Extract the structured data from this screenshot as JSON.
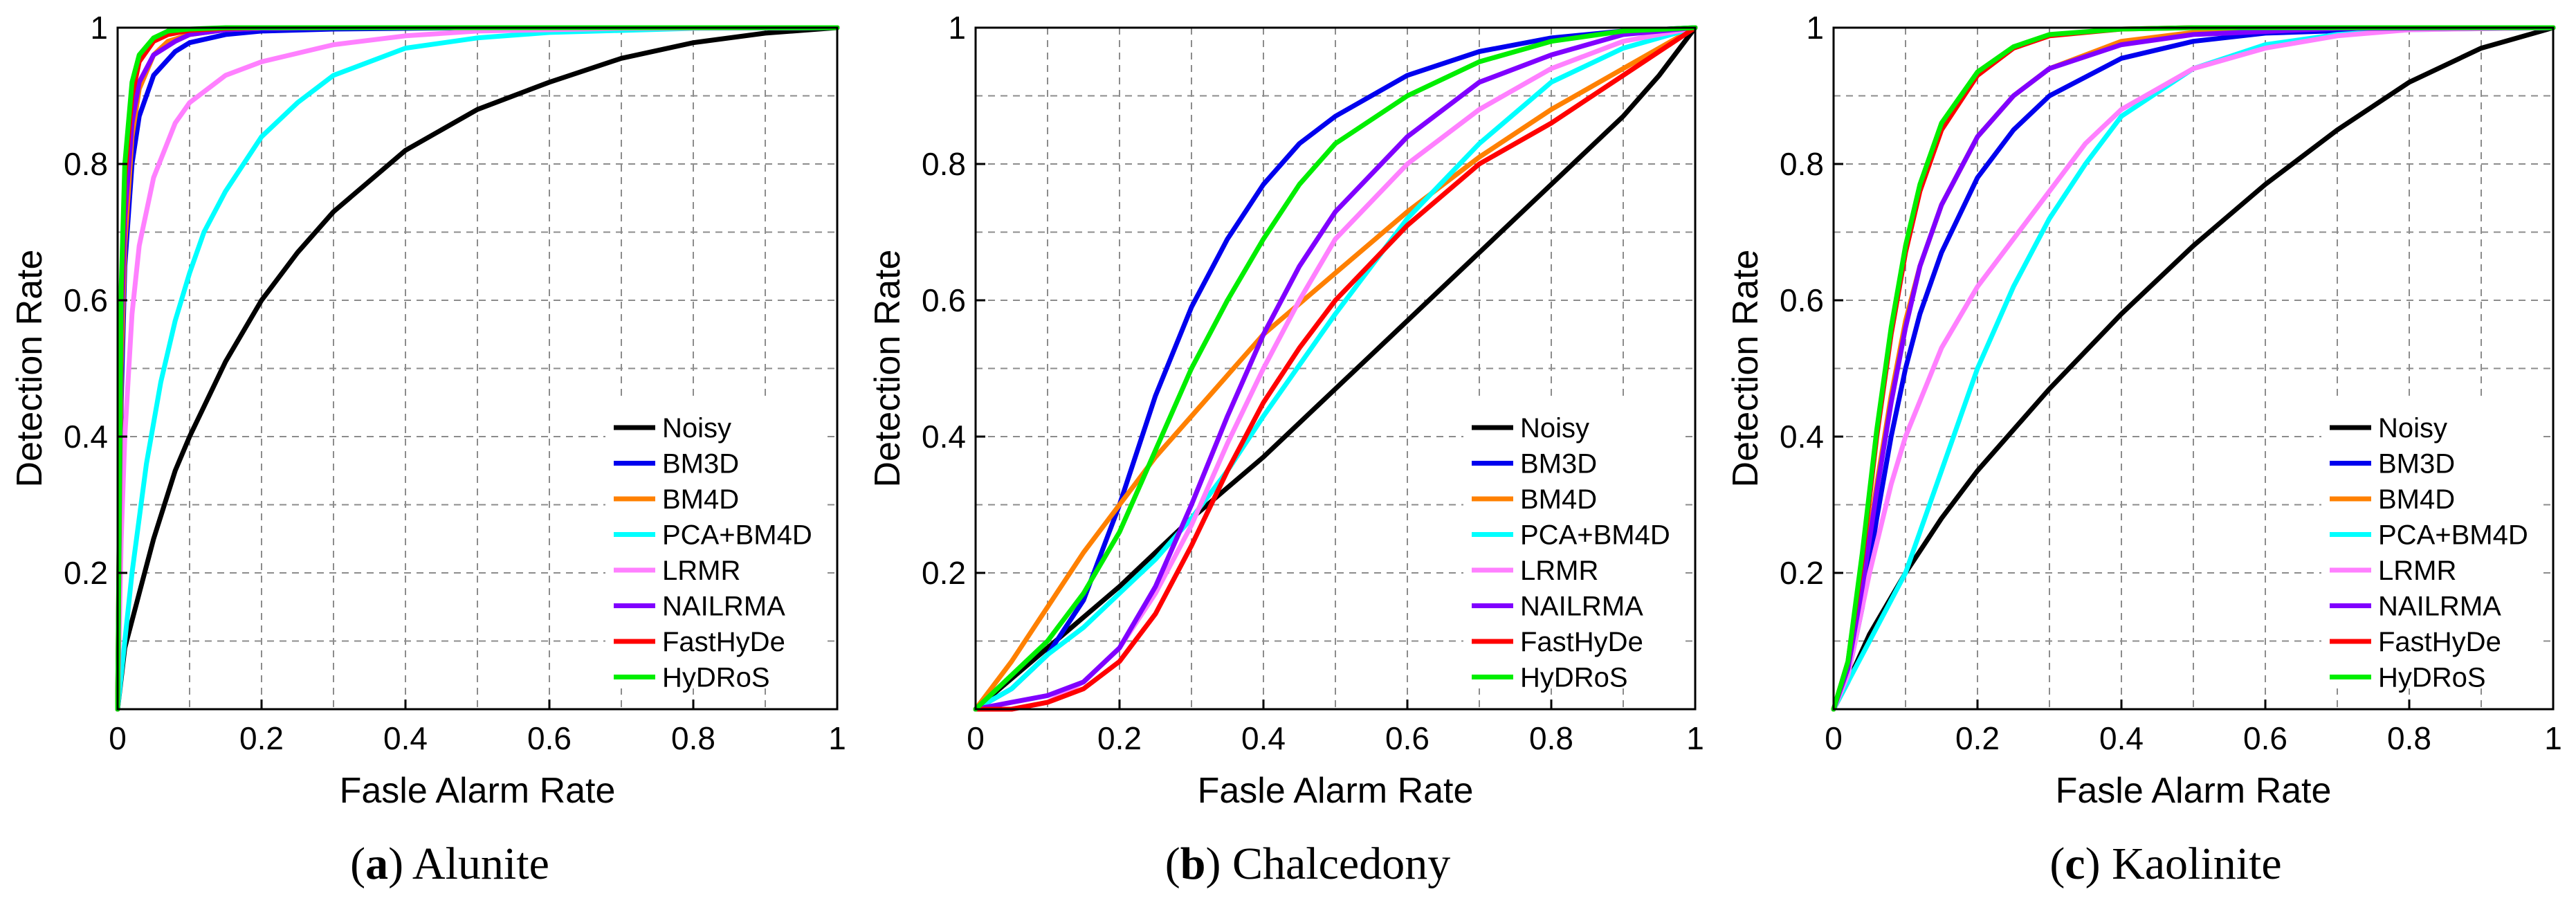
{
  "figure": {
    "panels": [
      {
        "caption_letter": "a",
        "caption_name": "Alunite"
      },
      {
        "caption_letter": "b",
        "caption_name": "Chalcedony"
      },
      {
        "caption_letter": "c",
        "caption_name": "Kaolinite"
      }
    ]
  },
  "chart_data": [
    {
      "type": "line",
      "title": "",
      "xlabel": "Fasle Alarm Rate",
      "ylabel": "Detection Rate",
      "xlim": [
        0,
        1
      ],
      "ylim": [
        0,
        1
      ],
      "xticks": [
        0,
        0.2,
        0.4,
        0.6,
        0.8,
        1
      ],
      "xtick_labels": [
        "0",
        "0.2",
        "0.4",
        "0.6",
        "0.8",
        "1"
      ],
      "yticks": [
        0.2,
        0.4,
        0.6,
        0.8,
        1
      ],
      "ytick_labels": [
        "0.2",
        "0.4",
        "0.6",
        "0.8",
        "1"
      ],
      "grid": true,
      "legend_position": "bottom-right",
      "series": [
        {
          "name": "Noisy",
          "color": "#000000",
          "x": [
            0,
            0.01,
            0.02,
            0.03,
            0.05,
            0.08,
            0.1,
            0.15,
            0.2,
            0.25,
            0.3,
            0.4,
            0.5,
            0.6,
            0.7,
            0.8,
            0.9,
            1.0
          ],
          "y": [
            0,
            0.09,
            0.13,
            0.17,
            0.25,
            0.35,
            0.4,
            0.51,
            0.6,
            0.67,
            0.73,
            0.82,
            0.88,
            0.92,
            0.955,
            0.978,
            0.992,
            1.0
          ]
        },
        {
          "name": "BM3D",
          "color": "#0000ee",
          "x": [
            0,
            0.005,
            0.01,
            0.02,
            0.03,
            0.05,
            0.08,
            0.1,
            0.15,
            0.2,
            0.3,
            0.5,
            1.0
          ],
          "y": [
            0,
            0.45,
            0.65,
            0.8,
            0.87,
            0.93,
            0.965,
            0.978,
            0.99,
            0.995,
            0.998,
            1.0,
            1.0
          ]
        },
        {
          "name": "BM4D",
          "color": "#ff8000",
          "x": [
            0,
            0.005,
            0.01,
            0.02,
            0.03,
            0.05,
            0.07,
            0.1,
            0.15,
            0.2,
            0.3,
            1.0
          ],
          "y": [
            0,
            0.5,
            0.68,
            0.84,
            0.91,
            0.96,
            0.98,
            0.99,
            0.997,
            0.999,
            1.0,
            1.0
          ]
        },
        {
          "name": "PCA+BM4D",
          "color": "#00ffff",
          "x": [
            0,
            0.01,
            0.02,
            0.04,
            0.06,
            0.08,
            0.1,
            0.12,
            0.15,
            0.2,
            0.25,
            0.3,
            0.4,
            0.5,
            0.6,
            0.8,
            1.0
          ],
          "y": [
            0,
            0.1,
            0.2,
            0.36,
            0.48,
            0.57,
            0.64,
            0.7,
            0.76,
            0.84,
            0.89,
            0.93,
            0.97,
            0.985,
            0.993,
            0.999,
            1.0
          ]
        },
        {
          "name": "LRMR",
          "color": "#ff80ff",
          "x": [
            0,
            0.005,
            0.01,
            0.02,
            0.03,
            0.05,
            0.08,
            0.1,
            0.15,
            0.2,
            0.3,
            0.4,
            0.5,
            0.7,
            1.0
          ],
          "y": [
            0,
            0.25,
            0.4,
            0.58,
            0.68,
            0.78,
            0.86,
            0.89,
            0.93,
            0.95,
            0.975,
            0.988,
            0.995,
            0.999,
            1.0
          ]
        },
        {
          "name": "NAILRMA",
          "color": "#8000ff",
          "x": [
            0,
            0.005,
            0.01,
            0.02,
            0.03,
            0.05,
            0.08,
            0.1,
            0.15,
            0.2,
            0.3,
            1.0
          ],
          "y": [
            0,
            0.55,
            0.72,
            0.86,
            0.92,
            0.96,
            0.98,
            0.99,
            0.997,
            0.999,
            1.0,
            1.0
          ]
        },
        {
          "name": "FastHyDe",
          "color": "#ff0000",
          "x": [
            0,
            0.005,
            0.01,
            0.02,
            0.03,
            0.05,
            0.07,
            0.1,
            0.15,
            0.2,
            1.0
          ],
          "y": [
            0,
            0.6,
            0.78,
            0.9,
            0.95,
            0.98,
            0.99,
            0.996,
            0.999,
            1.0,
            1.0
          ]
        },
        {
          "name": "HyDRoS",
          "color": "#00ee00",
          "x": [
            0,
            0.005,
            0.01,
            0.02,
            0.03,
            0.05,
            0.07,
            0.1,
            0.15,
            1.0
          ],
          "y": [
            0,
            0.62,
            0.8,
            0.92,
            0.96,
            0.985,
            0.995,
            0.998,
            1.0,
            1.0
          ]
        }
      ]
    },
    {
      "type": "line",
      "title": "",
      "xlabel": "Fasle Alarm Rate",
      "ylabel": "Detection Rate",
      "xlim": [
        0,
        1
      ],
      "ylim": [
        0,
        1
      ],
      "xticks": [
        0,
        0.2,
        0.4,
        0.6,
        0.8,
        1
      ],
      "xtick_labels": [
        "0",
        "0.2",
        "0.4",
        "0.6",
        "0.8",
        "1"
      ],
      "yticks": [
        0.2,
        0.4,
        0.6,
        0.8,
        1
      ],
      "ytick_labels": [
        "0.2",
        "0.4",
        "0.6",
        "0.8",
        "1"
      ],
      "grid": true,
      "legend_position": "bottom-right",
      "series": [
        {
          "name": "Noisy",
          "color": "#000000",
          "x": [
            0,
            0.1,
            0.2,
            0.3,
            0.4,
            0.5,
            0.6,
            0.7,
            0.8,
            0.9,
            0.95,
            1.0
          ],
          "y": [
            0,
            0.09,
            0.18,
            0.28,
            0.37,
            0.47,
            0.57,
            0.67,
            0.77,
            0.87,
            0.93,
            1.0
          ]
        },
        {
          "name": "BM3D",
          "color": "#0000ee",
          "x": [
            0,
            0.05,
            0.1,
            0.15,
            0.2,
            0.25,
            0.3,
            0.35,
            0.4,
            0.45,
            0.5,
            0.6,
            0.7,
            0.8,
            0.9,
            1.0
          ],
          "y": [
            0,
            0.03,
            0.08,
            0.16,
            0.3,
            0.46,
            0.59,
            0.69,
            0.77,
            0.83,
            0.87,
            0.93,
            0.965,
            0.985,
            0.995,
            1.0
          ]
        },
        {
          "name": "BM4D",
          "color": "#ff8000",
          "x": [
            0,
            0.05,
            0.1,
            0.15,
            0.2,
            0.25,
            0.3,
            0.35,
            0.4,
            0.5,
            0.6,
            0.7,
            0.8,
            0.9,
            1.0
          ],
          "y": [
            0,
            0.07,
            0.15,
            0.23,
            0.3,
            0.37,
            0.43,
            0.49,
            0.55,
            0.64,
            0.73,
            0.81,
            0.88,
            0.94,
            1.0
          ]
        },
        {
          "name": "PCA+BM4D",
          "color": "#00ffff",
          "x": [
            0,
            0.05,
            0.1,
            0.15,
            0.2,
            0.25,
            0.3,
            0.35,
            0.4,
            0.5,
            0.6,
            0.7,
            0.8,
            0.9,
            1.0
          ],
          "y": [
            0,
            0.03,
            0.08,
            0.12,
            0.17,
            0.22,
            0.28,
            0.35,
            0.43,
            0.58,
            0.72,
            0.83,
            0.92,
            0.97,
            1.0
          ]
        },
        {
          "name": "LRMR",
          "color": "#ff80ff",
          "x": [
            0,
            0.05,
            0.1,
            0.15,
            0.2,
            0.25,
            0.3,
            0.35,
            0.4,
            0.45,
            0.5,
            0.6,
            0.7,
            0.8,
            0.9,
            1.0
          ],
          "y": [
            0,
            0.0,
            0.01,
            0.04,
            0.09,
            0.17,
            0.27,
            0.39,
            0.5,
            0.6,
            0.69,
            0.8,
            0.88,
            0.94,
            0.98,
            1.0
          ]
        },
        {
          "name": "NAILRMA",
          "color": "#8000ff",
          "x": [
            0,
            0.05,
            0.1,
            0.15,
            0.2,
            0.25,
            0.3,
            0.35,
            0.4,
            0.45,
            0.5,
            0.6,
            0.7,
            0.8,
            0.9,
            1.0
          ],
          "y": [
            0,
            0.01,
            0.02,
            0.04,
            0.09,
            0.18,
            0.3,
            0.43,
            0.55,
            0.65,
            0.73,
            0.84,
            0.92,
            0.96,
            0.99,
            1.0
          ]
        },
        {
          "name": "FastHyDe",
          "color": "#ff0000",
          "x": [
            0,
            0.05,
            0.1,
            0.15,
            0.2,
            0.25,
            0.3,
            0.35,
            0.4,
            0.45,
            0.5,
            0.6,
            0.7,
            0.8,
            0.9,
            1.0
          ],
          "y": [
            0,
            0.0,
            0.01,
            0.03,
            0.07,
            0.14,
            0.24,
            0.35,
            0.45,
            0.53,
            0.6,
            0.71,
            0.8,
            0.86,
            0.93,
            1.0
          ]
        },
        {
          "name": "HyDRoS",
          "color": "#00ee00",
          "x": [
            0,
            0.05,
            0.1,
            0.15,
            0.2,
            0.25,
            0.3,
            0.35,
            0.4,
            0.45,
            0.5,
            0.6,
            0.7,
            0.8,
            0.9,
            1.0
          ],
          "y": [
            0,
            0.05,
            0.1,
            0.17,
            0.26,
            0.38,
            0.5,
            0.6,
            0.69,
            0.77,
            0.83,
            0.9,
            0.95,
            0.98,
            0.995,
            1.0
          ]
        }
      ]
    },
    {
      "type": "line",
      "title": "",
      "xlabel": "Fasle Alarm Rate",
      "ylabel": "Detection Rate",
      "xlim": [
        0,
        1
      ],
      "ylim": [
        0,
        1
      ],
      "xticks": [
        0,
        0.2,
        0.4,
        0.6,
        0.8,
        1
      ],
      "xtick_labels": [
        "0",
        "0.2",
        "0.4",
        "0.6",
        "0.8",
        "1"
      ],
      "yticks": [
        0.2,
        0.4,
        0.6,
        0.8,
        1
      ],
      "ytick_labels": [
        "0.2",
        "0.4",
        "0.6",
        "0.8",
        "1"
      ],
      "grid": true,
      "legend_position": "bottom-right",
      "series": [
        {
          "name": "Noisy",
          "color": "#000000",
          "x": [
            0,
            0.02,
            0.05,
            0.1,
            0.15,
            0.2,
            0.3,
            0.4,
            0.5,
            0.6,
            0.7,
            0.8,
            0.9,
            1.0
          ],
          "y": [
            0,
            0.04,
            0.11,
            0.2,
            0.28,
            0.35,
            0.47,
            0.58,
            0.68,
            0.77,
            0.85,
            0.92,
            0.97,
            1.0
          ]
        },
        {
          "name": "BM3D",
          "color": "#0000ee",
          "x": [
            0,
            0.02,
            0.04,
            0.06,
            0.08,
            0.1,
            0.12,
            0.15,
            0.2,
            0.25,
            0.3,
            0.4,
            0.5,
            0.6,
            0.8,
            1.0
          ],
          "y": [
            0,
            0.05,
            0.15,
            0.28,
            0.4,
            0.5,
            0.58,
            0.67,
            0.78,
            0.85,
            0.9,
            0.955,
            0.98,
            0.992,
            0.999,
            1.0
          ]
        },
        {
          "name": "BM4D",
          "color": "#ff8000",
          "x": [
            0,
            0.02,
            0.04,
            0.06,
            0.08,
            0.1,
            0.12,
            0.15,
            0.2,
            0.25,
            0.3,
            0.4,
            0.5,
            0.7,
            1.0
          ],
          "y": [
            0,
            0.06,
            0.18,
            0.33,
            0.46,
            0.57,
            0.65,
            0.74,
            0.84,
            0.9,
            0.94,
            0.98,
            0.993,
            0.999,
            1.0
          ]
        },
        {
          "name": "PCA+BM4D",
          "color": "#00ffff",
          "x": [
            0,
            0.02,
            0.05,
            0.1,
            0.15,
            0.2,
            0.25,
            0.3,
            0.35,
            0.4,
            0.5,
            0.6,
            0.7,
            0.8,
            1.0
          ],
          "y": [
            0,
            0.04,
            0.1,
            0.2,
            0.35,
            0.5,
            0.62,
            0.72,
            0.8,
            0.87,
            0.94,
            0.975,
            0.99,
            0.997,
            1.0
          ]
        },
        {
          "name": "LRMR",
          "color": "#ff80ff",
          "x": [
            0,
            0.02,
            0.05,
            0.08,
            0.1,
            0.15,
            0.2,
            0.25,
            0.3,
            0.35,
            0.4,
            0.5,
            0.6,
            0.7,
            0.8,
            1.0
          ],
          "y": [
            0,
            0.05,
            0.2,
            0.33,
            0.4,
            0.53,
            0.62,
            0.69,
            0.76,
            0.83,
            0.88,
            0.94,
            0.97,
            0.988,
            0.997,
            1.0
          ]
        },
        {
          "name": "NAILRMA",
          "color": "#8000ff",
          "x": [
            0,
            0.02,
            0.04,
            0.06,
            0.08,
            0.1,
            0.12,
            0.15,
            0.2,
            0.25,
            0.3,
            0.4,
            0.5,
            0.7,
            1.0
          ],
          "y": [
            0,
            0.06,
            0.18,
            0.32,
            0.45,
            0.56,
            0.65,
            0.74,
            0.84,
            0.9,
            0.94,
            0.975,
            0.99,
            0.999,
            1.0
          ]
        },
        {
          "name": "FastHyDe",
          "color": "#ff0000",
          "x": [
            0,
            0.02,
            0.04,
            0.06,
            0.08,
            0.1,
            0.12,
            0.15,
            0.2,
            0.25,
            0.3,
            0.4,
            0.5,
            1.0
          ],
          "y": [
            0,
            0.07,
            0.22,
            0.4,
            0.55,
            0.67,
            0.76,
            0.85,
            0.93,
            0.97,
            0.988,
            0.998,
            1.0,
            1.0
          ]
        },
        {
          "name": "HyDRoS",
          "color": "#00ee00",
          "x": [
            0,
            0.02,
            0.04,
            0.06,
            0.08,
            0.1,
            0.12,
            0.15,
            0.2,
            0.25,
            0.3,
            0.4,
            0.5,
            1.0
          ],
          "y": [
            0,
            0.07,
            0.23,
            0.41,
            0.56,
            0.68,
            0.77,
            0.86,
            0.935,
            0.972,
            0.99,
            0.998,
            1.0,
            1.0
          ]
        }
      ]
    }
  ]
}
